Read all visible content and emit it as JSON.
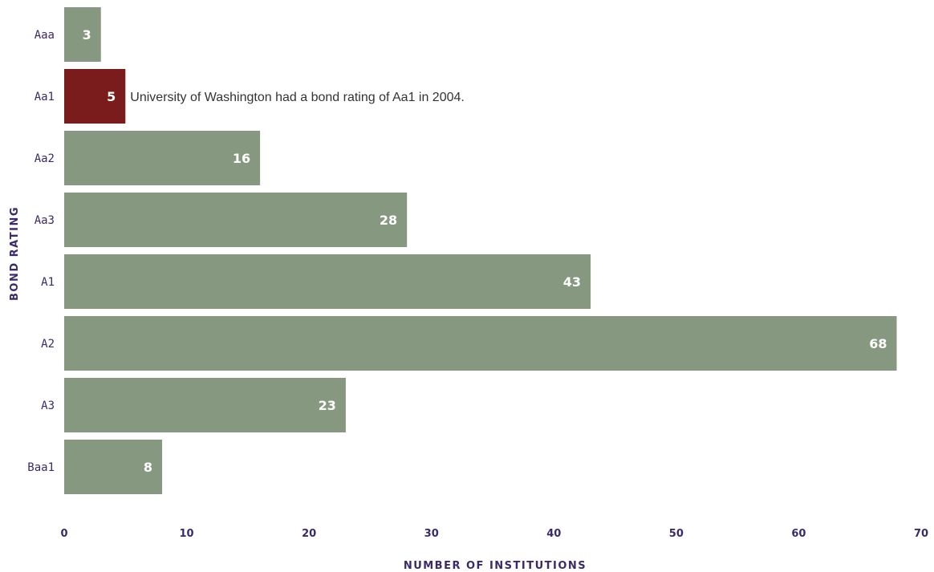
{
  "chart_data": {
    "type": "bar",
    "orientation": "horizontal",
    "categories": [
      "Aaa",
      "Aa1",
      "Aa2",
      "Aa3",
      "A1",
      "A2",
      "A3",
      "Baa1"
    ],
    "values": [
      3,
      5,
      16,
      28,
      43,
      68,
      23,
      8
    ],
    "highlight": {
      "category": "Aa1",
      "color": "#7a1c1c",
      "annotation": "University of Washington had a bond rating of Aa1 in 2004."
    },
    "bar_color": "#86987f",
    "value_label_color": "#ffffff",
    "axis_text_color": "#3b2a6b",
    "xlabel": "NUMBER OF INSTITUTIONS",
    "ylabel": "BOND RATING",
    "xlim": [
      0,
      70
    ],
    "xticks": [
      0,
      10,
      20,
      30,
      40,
      50,
      60,
      70
    ],
    "grid": false,
    "legend": "none"
  }
}
